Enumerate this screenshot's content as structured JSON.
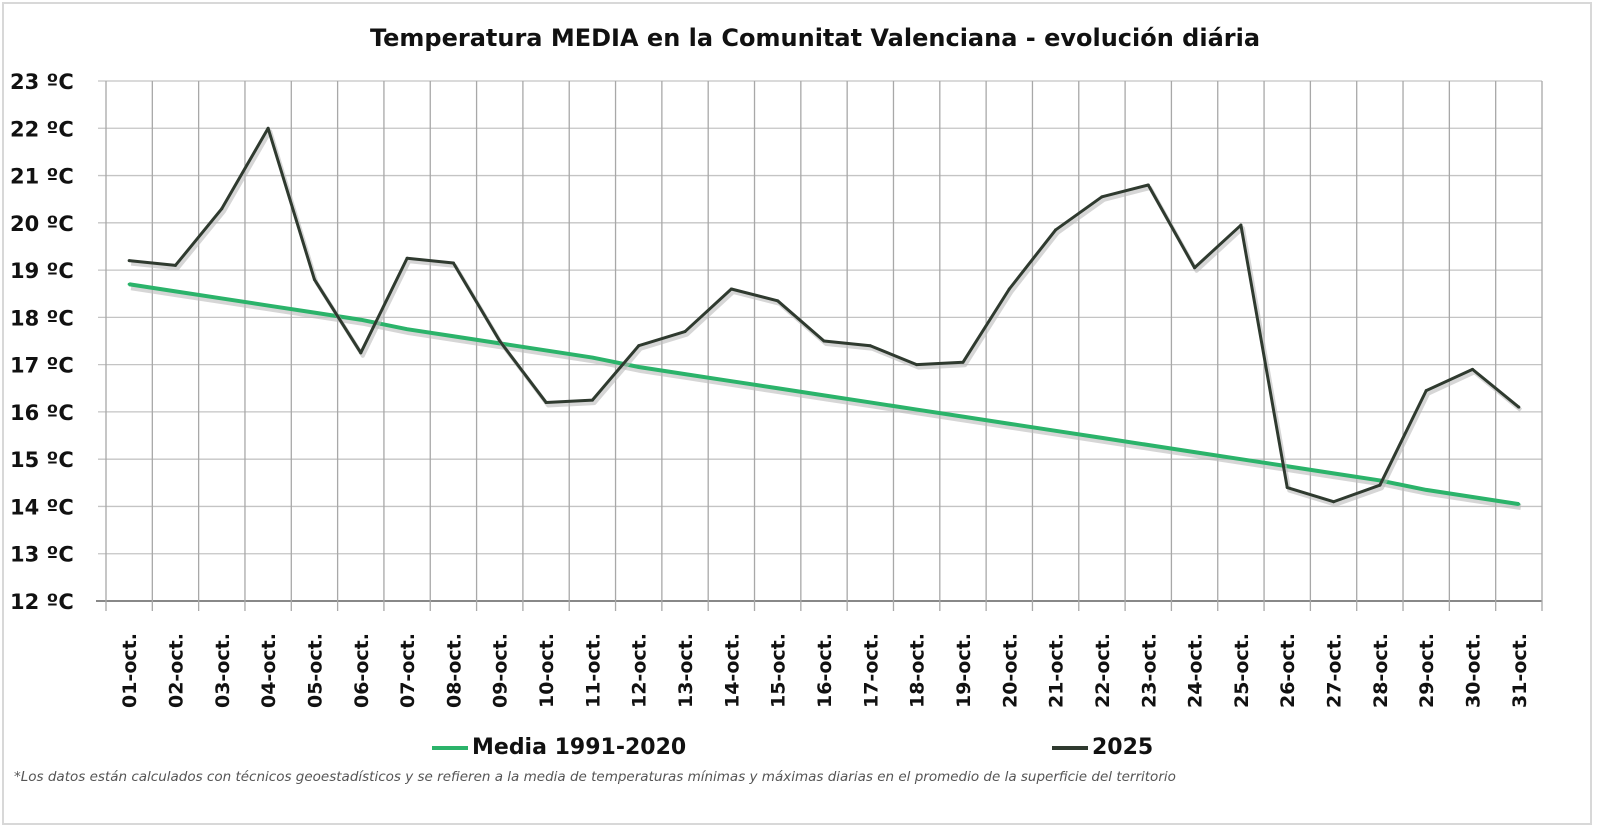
{
  "chart_data": {
    "type": "line",
    "title": "Temperatura MEDIA en la Comunitat Valenciana - evolución diária",
    "xlabel": "",
    "ylabel": "",
    "ylim": [
      12,
      23
    ],
    "yticks": [
      "12 ºC",
      "13 ºC",
      "14 ºC",
      "15 ºC",
      "16 ºC",
      "17 ºC",
      "18 ºC",
      "19 ºC",
      "20 ºC",
      "21 ºC",
      "22 ºC",
      "23 ºC"
    ],
    "grid": true,
    "legend": "bottom",
    "categories": [
      "01-oct.",
      "02-oct.",
      "03-oct.",
      "04-oct.",
      "05-oct.",
      "06-oct.",
      "07-oct.",
      "08-oct.",
      "09-oct.",
      "10-oct.",
      "11-oct.",
      "12-oct.",
      "13-oct.",
      "14-oct.",
      "15-oct.",
      "16-oct.",
      "17-oct.",
      "18-oct.",
      "19-oct.",
      "20-oct.",
      "21-oct.",
      "22-oct.",
      "23-oct.",
      "24-oct.",
      "25-oct.",
      "26-oct.",
      "27-oct.",
      "28-oct.",
      "29-oct.",
      "30-oct.",
      "31-oct."
    ],
    "series": [
      {
        "name": "Media 1991-2020",
        "color": "#2bb36a",
        "values": [
          18.7,
          18.55,
          18.4,
          18.25,
          18.1,
          17.95,
          17.75,
          17.6,
          17.45,
          17.3,
          17.15,
          16.95,
          16.8,
          16.65,
          16.5,
          16.35,
          16.2,
          16.05,
          15.9,
          15.75,
          15.6,
          15.45,
          15.3,
          15.15,
          15.0,
          14.85,
          14.7,
          14.55,
          14.35,
          14.2,
          14.05
        ]
      },
      {
        "name": "2025",
        "color": "#2f3a2f",
        "values": [
          19.2,
          19.1,
          20.3,
          22.0,
          18.8,
          17.25,
          19.25,
          19.15,
          17.5,
          16.2,
          16.25,
          17.4,
          17.7,
          18.6,
          18.35,
          17.5,
          17.4,
          17.0,
          17.05,
          18.6,
          19.85,
          20.55,
          20.8,
          19.05,
          19.95,
          14.4,
          14.1,
          14.45,
          16.45,
          16.9,
          16.1
        ]
      }
    ],
    "footnote": "*Los datos están calculados con técnicos geoestadísticos y se refieren a la media de temperaturas mínimas y máximas diarias en el promedio de la superficie del territorio"
  }
}
